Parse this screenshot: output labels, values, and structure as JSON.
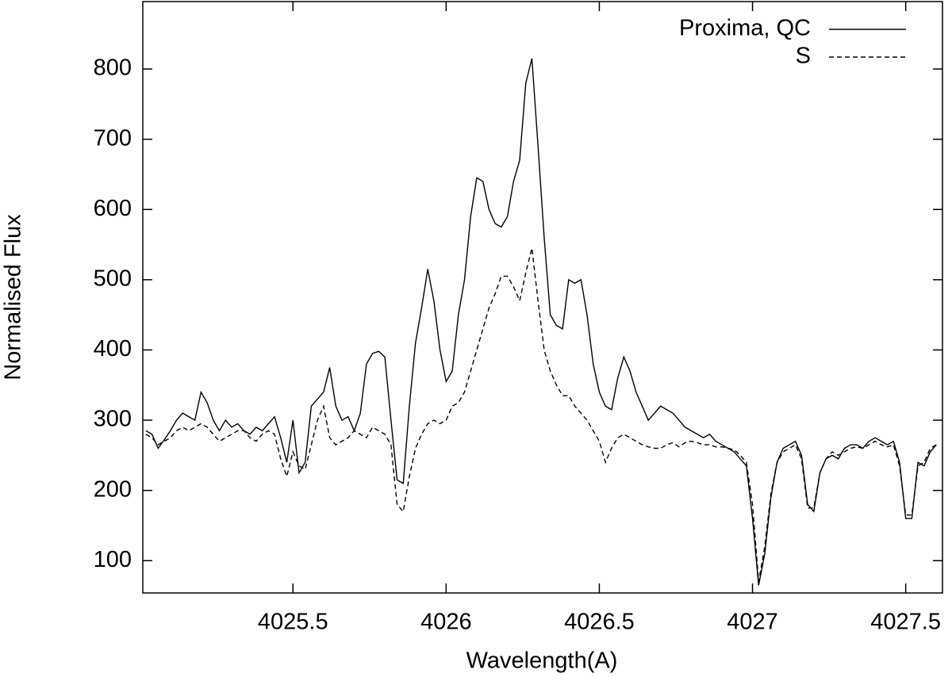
{
  "chart_data": {
    "type": "line",
    "x_label": "Wavelength(A)",
    "y_label": "Normalised Flux",
    "x": [
      4025.02,
      4025.04,
      4025.06,
      4025.08,
      4025.1,
      4025.12,
      4025.14,
      4025.16,
      4025.18,
      4025.2,
      4025.22,
      4025.24,
      4025.26,
      4025.28,
      4025.3,
      4025.32,
      4025.34,
      4025.36,
      4025.38,
      4025.4,
      4025.42,
      4025.44,
      4025.46,
      4025.48,
      4025.5,
      4025.52,
      4025.54,
      4025.56,
      4025.58,
      4025.6,
      4025.62,
      4025.64,
      4025.66,
      4025.68,
      4025.7,
      4025.72,
      4025.74,
      4025.76,
      4025.78,
      4025.8,
      4025.82,
      4025.84,
      4025.86,
      4025.88,
      4025.9,
      4025.92,
      4025.94,
      4025.96,
      4025.98,
      4026.0,
      4026.02,
      4026.04,
      4026.06,
      4026.08,
      4026.1,
      4026.12,
      4026.14,
      4026.16,
      4026.18,
      4026.2,
      4026.22,
      4026.24,
      4026.26,
      4026.28,
      4026.3,
      4026.32,
      4026.34,
      4026.36,
      4026.38,
      4026.4,
      4026.42,
      4026.44,
      4026.46,
      4026.48,
      4026.5,
      4026.52,
      4026.54,
      4026.56,
      4026.58,
      4026.6,
      4026.62,
      4026.64,
      4026.66,
      4026.68,
      4026.7,
      4026.72,
      4026.74,
      4026.76,
      4026.78,
      4026.8,
      4026.82,
      4026.84,
      4026.86,
      4026.88,
      4026.9,
      4026.92,
      4026.94,
      4026.96,
      4026.98,
      4027.0,
      4027.02,
      4027.04,
      4027.06,
      4027.08,
      4027.1,
      4027.12,
      4027.14,
      4027.16,
      4027.18,
      4027.2,
      4027.22,
      4027.24,
      4027.26,
      4027.28,
      4027.3,
      4027.32,
      4027.34,
      4027.36,
      4027.38,
      4027.4,
      4027.42,
      4027.44,
      4027.46,
      4027.48,
      4027.5,
      4027.52,
      4027.54,
      4027.56,
      4027.58,
      4027.6
    ],
    "series": [
      {
        "name": "Proxima, QC",
        "color": "#000000",
        "dash": "solid",
        "values": [
          285,
          280,
          260,
          272,
          285,
          300,
          310,
          305,
          300,
          340,
          325,
          300,
          285,
          300,
          290,
          295,
          285,
          280,
          290,
          285,
          295,
          305,
          275,
          240,
          300,
          225,
          240,
          320,
          330,
          340,
          375,
          320,
          300,
          305,
          285,
          310,
          380,
          395,
          398,
          390,
          300,
          215,
          210,
          320,
          410,
          460,
          515,
          470,
          400,
          355,
          370,
          450,
          500,
          590,
          645,
          640,
          600,
          580,
          575,
          590,
          640,
          670,
          780,
          815,
          690,
          560,
          450,
          435,
          430,
          500,
          495,
          500,
          450,
          380,
          340,
          320,
          315,
          360,
          390,
          370,
          340,
          320,
          300,
          310,
          320,
          315,
          310,
          300,
          290,
          285,
          280,
          275,
          280,
          270,
          265,
          260,
          255,
          245,
          235,
          160,
          65,
          110,
          190,
          240,
          260,
          265,
          270,
          250,
          180,
          170,
          225,
          245,
          250,
          245,
          260,
          265,
          265,
          260,
          270,
          275,
          270,
          265,
          270,
          240,
          160,
          160,
          240,
          235,
          255,
          265
        ]
      },
      {
        "name": "S",
        "color": "#000000",
        "dash": "dashed",
        "values": [
          280,
          275,
          265,
          270,
          275,
          285,
          290,
          285,
          290,
          295,
          290,
          280,
          270,
          275,
          280,
          285,
          285,
          275,
          270,
          280,
          285,
          280,
          245,
          220,
          255,
          235,
          230,
          265,
          300,
          320,
          275,
          265,
          270,
          275,
          285,
          280,
          275,
          290,
          285,
          280,
          265,
          180,
          170,
          220,
          260,
          280,
          295,
          300,
          295,
          300,
          320,
          325,
          340,
          370,
          400,
          430,
          460,
          480,
          505,
          505,
          490,
          470,
          510,
          545,
          470,
          400,
          370,
          350,
          335,
          335,
          320,
          310,
          300,
          285,
          270,
          240,
          260,
          275,
          280,
          275,
          270,
          265,
          262,
          260,
          260,
          265,
          268,
          262,
          268,
          270,
          268,
          265,
          265,
          262,
          262,
          260,
          258,
          250,
          240,
          180,
          70,
          120,
          195,
          240,
          255,
          260,
          265,
          245,
          175,
          175,
          225,
          245,
          255,
          250,
          255,
          260,
          262,
          260,
          265,
          270,
          265,
          262,
          265,
          235,
          165,
          165,
          235,
          240,
          260,
          265
        ]
      }
    ],
    "xlim": [
      4025.01,
      4027.62
    ],
    "ylim": [
      54,
      896
    ],
    "xticks": [
      4025.5,
      4026,
      4026.5,
      4027,
      4027.5
    ],
    "yticks": [
      100,
      200,
      300,
      400,
      500,
      600,
      700,
      800
    ],
    "legend": "top-right",
    "grid": false
  }
}
